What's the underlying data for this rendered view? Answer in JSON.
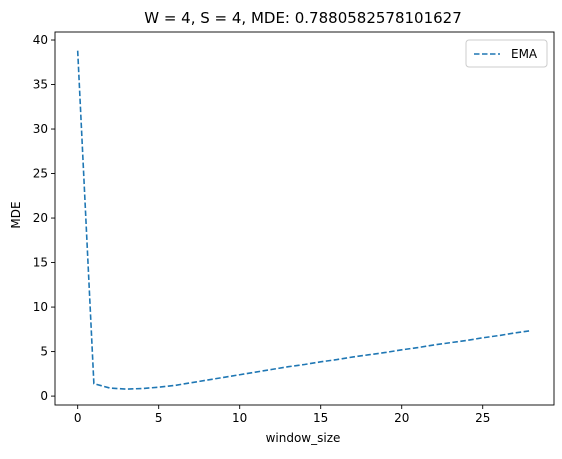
{
  "chart_data": {
    "type": "line",
    "title": "W = 4, S = 4, MDE: 0.7880582578101627",
    "xlabel": "window_size",
    "ylabel": "MDE",
    "xlim": [
      -1.4,
      29.4
    ],
    "ylim": [
      -1.0,
      40.9
    ],
    "xticks": [
      0,
      5,
      10,
      15,
      20,
      25
    ],
    "yticks": [
      0,
      5,
      10,
      15,
      20,
      25,
      30,
      35,
      40
    ],
    "grid": false,
    "legend": {
      "position": "top-right",
      "entries": [
        "EMA"
      ]
    },
    "series": [
      {
        "name": "EMA",
        "color": "#1f77b4",
        "linestyle": "dashed",
        "x": [
          0,
          1,
          2,
          3,
          4,
          5,
          6,
          7,
          8,
          9,
          10,
          11,
          12,
          13,
          14,
          15,
          16,
          17,
          18,
          19,
          20,
          21,
          22,
          23,
          24,
          25,
          26,
          27,
          28
        ],
        "y": [
          38.8,
          1.4,
          0.9,
          0.79,
          0.85,
          1.0,
          1.2,
          1.5,
          1.8,
          2.1,
          2.4,
          2.7,
          3.0,
          3.3,
          3.55,
          3.85,
          4.1,
          4.4,
          4.65,
          4.9,
          5.2,
          5.45,
          5.75,
          6.0,
          6.25,
          6.55,
          6.8,
          7.1,
          7.35
        ]
      }
    ]
  }
}
